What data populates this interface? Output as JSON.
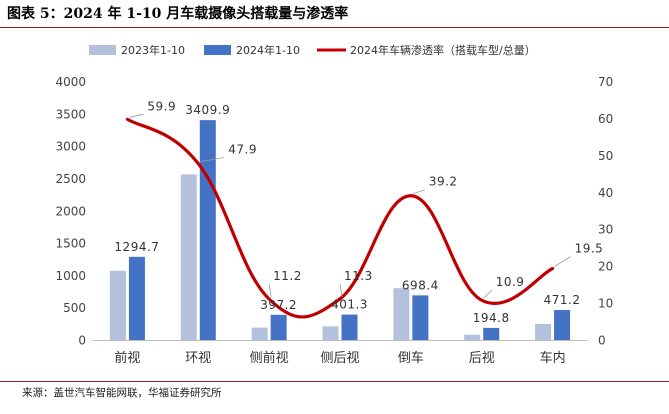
{
  "title": "图表 5：2024 年 1-10 月车载摄像头搭载量与渗透率",
  "source": "来源：盖世汽车智能网联，华福证券研究所",
  "colors": {
    "bar2023": "#b4c1dc",
    "bar2024": "#4472c4",
    "line": "#c00000",
    "rule": "#8a1c22"
  },
  "chart_data": {
    "type": "bar",
    "categories": [
      "前视",
      "环视",
      "侧前视",
      "侧后视",
      "倒车",
      "后视",
      "车内"
    ],
    "series": [
      {
        "name": "2023年1-10",
        "type": "bar",
        "axis": "left",
        "values": [
          1080,
          2570,
          200,
          220,
          810,
          90,
          255
        ]
      },
      {
        "name": "2024年1-10",
        "type": "bar",
        "axis": "left",
        "values": [
          1294.7,
          3409.9,
          397.2,
          401.3,
          698.4,
          194.8,
          471.2
        ]
      },
      {
        "name": "2024年车辆渗透率（搭载车型/总量）",
        "type": "line",
        "axis": "right",
        "values": [
          59.9,
          47.9,
          11.2,
          11.3,
          39.2,
          10.9,
          19.5
        ]
      }
    ],
    "bar_labels": [
      "1294.7",
      "3409.9",
      "397.2",
      "401.3",
      "698.4",
      "194.8",
      "471.2"
    ],
    "line_labels": [
      "59.9",
      "47.9",
      "11.2",
      "11.3",
      "39.2",
      "10.9",
      "19.5"
    ],
    "ylim": [
      0,
      4000
    ],
    "yticks": [
      "0",
      "500",
      "1000",
      "1500",
      "2000",
      "2500",
      "3000",
      "3500",
      "4000"
    ],
    "y2lim": [
      0,
      70
    ],
    "y2ticks": [
      "0",
      "10",
      "20",
      "30",
      "40",
      "50",
      "60",
      "70"
    ],
    "legend_position": "top",
    "grid": false
  }
}
